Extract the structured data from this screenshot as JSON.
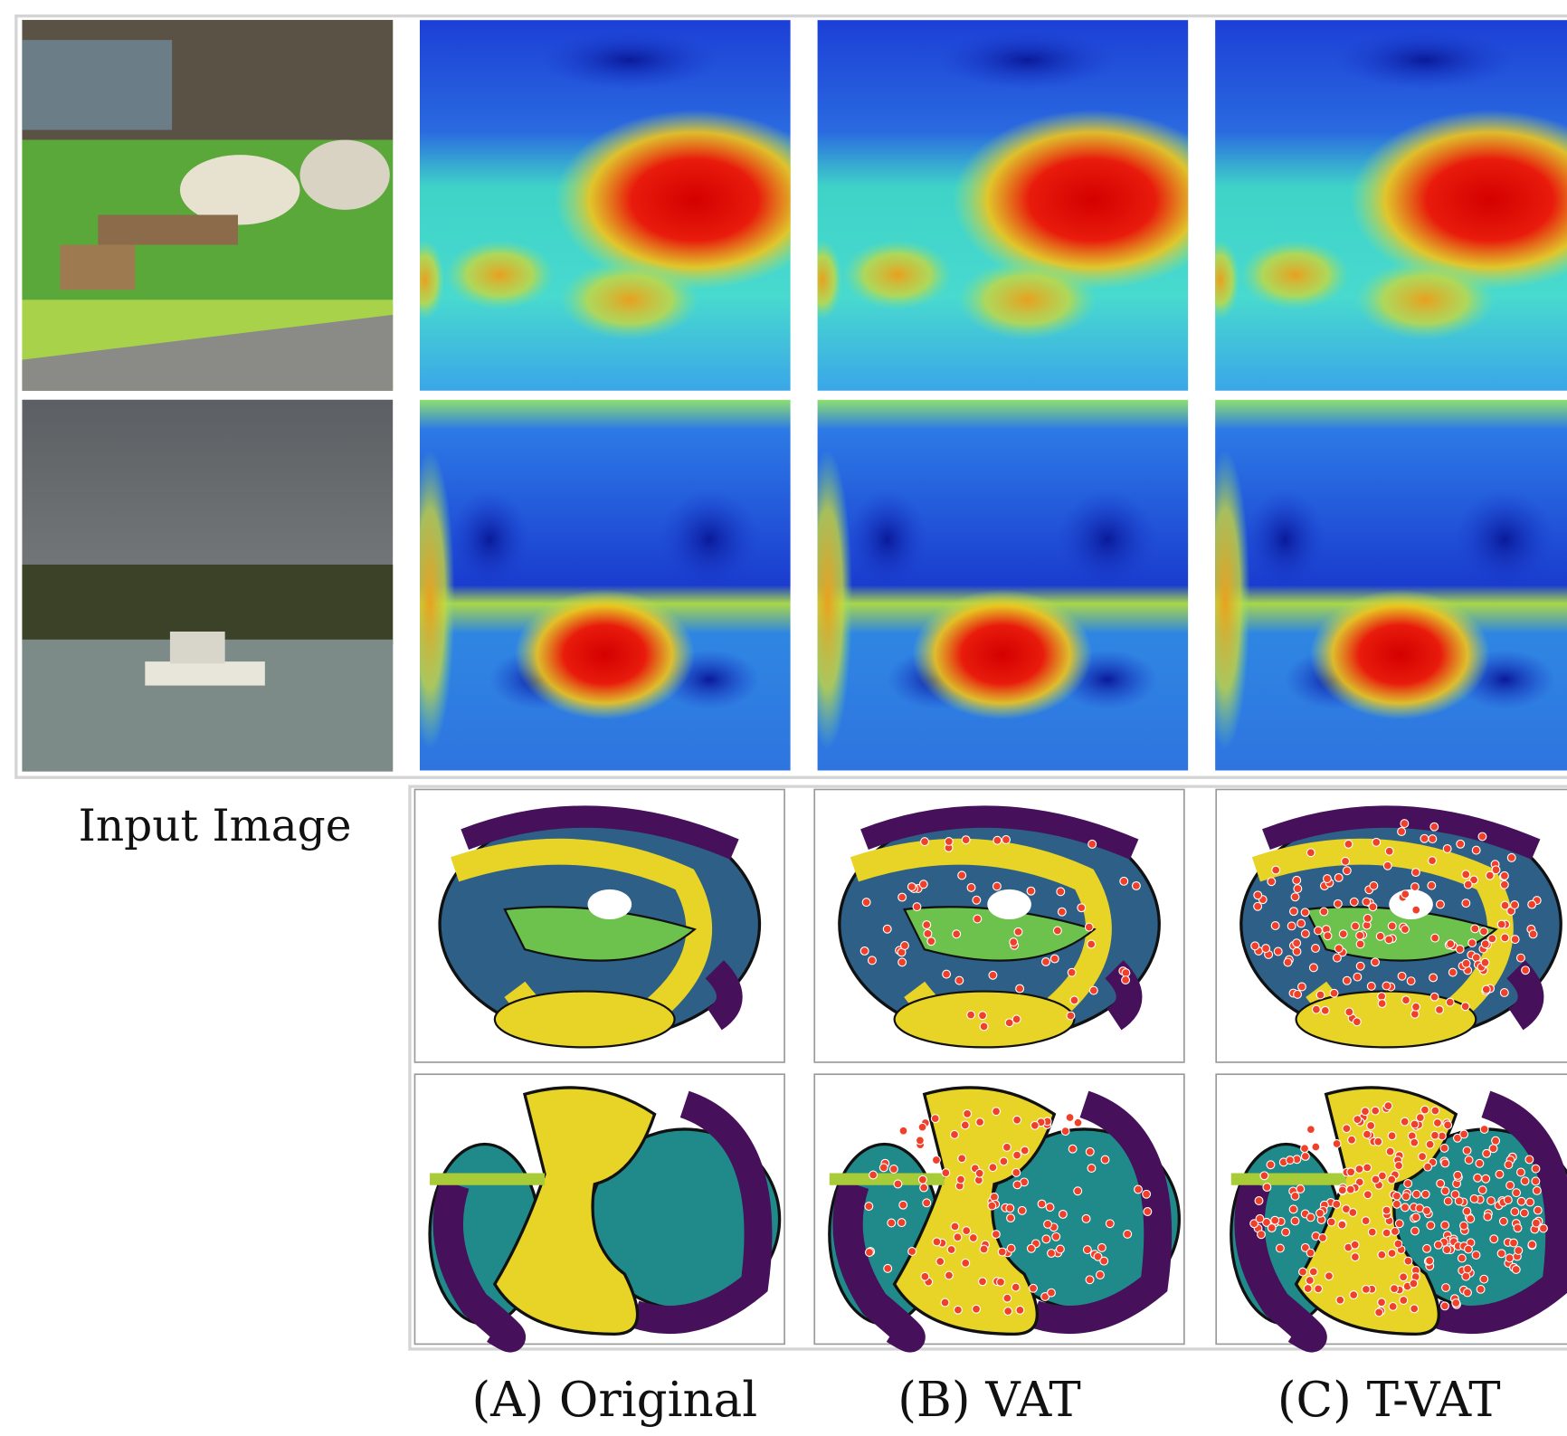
{
  "figure": {
    "row_label": "Input Image",
    "columns": [
      "(A) Original",
      "(B) VAT",
      "(C) T-VAT"
    ]
  }
}
